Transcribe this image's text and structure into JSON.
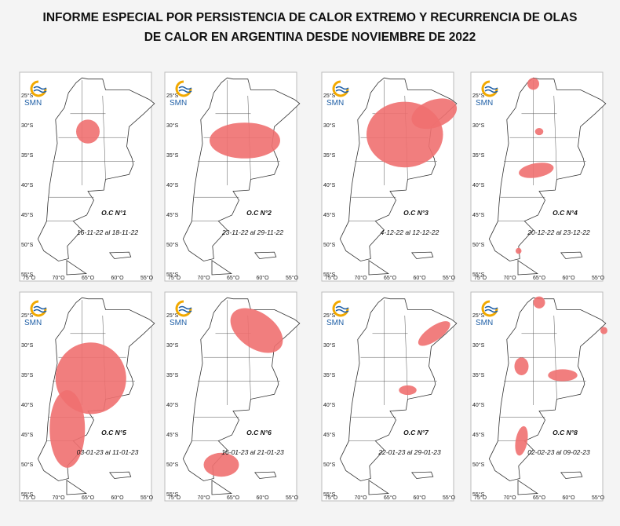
{
  "title": [
    "INFORME ESPECIAL POR PERSISTENCIA DE CALOR EXTREMO Y RECURRENCIA DE OLAS",
    "DE CALOR EN ARGENTINA DESDE NOVIEMBRE DE 2022"
  ],
  "logo": "SMN",
  "lat_labels": [
    "25°S",
    "30°S",
    "35°S",
    "40°S",
    "45°S",
    "50°S",
    "55°S"
  ],
  "lon_labels": [
    "75°O",
    "70°O",
    "65°O",
    "60°O",
    "55°O"
  ],
  "panels": [
    {
      "label": "O.C N°1",
      "dates": "16-11-22 al 18-11-22"
    },
    {
      "label": "O.C N°2",
      "dates": "23-11-22 al 29-11-22"
    },
    {
      "label": "O.C N°3",
      "dates": "4-12-22 al 12-12-22"
    },
    {
      "label": "O.C N°4",
      "dates": "20-12-22 al 23-12-22"
    },
    {
      "label": "O.C N°5",
      "dates": "03-01-23 al 11-01-23"
    },
    {
      "label": "O.C N°6",
      "dates": "16-01-23 al 21-01-23"
    },
    {
      "label": "O.C N°7",
      "dates": "22-01-23 al 29-01-23"
    },
    {
      "label": "O.C N°8",
      "dates": "02-02-23 al 09-02-23"
    }
  ]
}
